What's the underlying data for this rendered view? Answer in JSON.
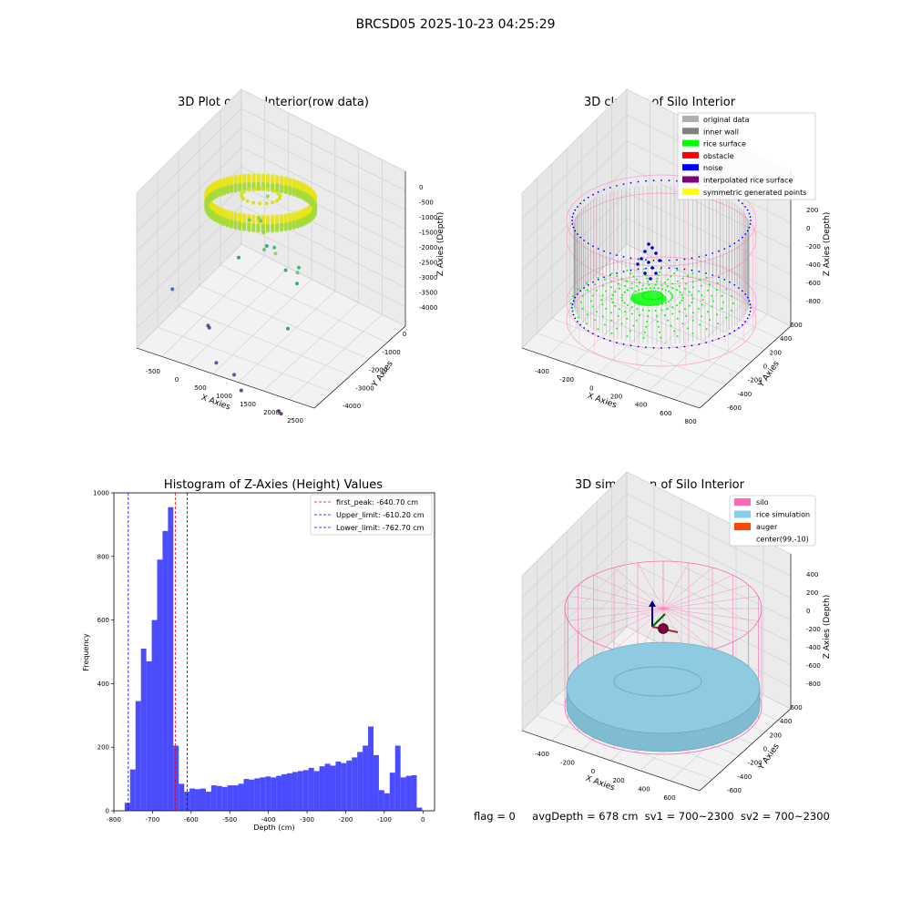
{
  "page": {
    "suptitle": "BRCSD05 2025-10-23 04:25:29",
    "status": {
      "flag": "flag = 0",
      "avg_depth": "avgDepth = 678 cm",
      "sv1": "sv1 = 700~2300",
      "sv2": "sv2 = 700~2300"
    }
  },
  "chart_data": [
    {
      "type": "scatter3d",
      "title": "3D Plot of Silo Interior(row data)",
      "xlabel": "X Axies",
      "ylabel": "Y Axies",
      "zlabel": "Z Axies (Depth)",
      "xticks": [
        "-500",
        "0",
        "500",
        "1000",
        "1500",
        "2000",
        "2500"
      ],
      "yticks": [
        "-4000",
        "-3000",
        "-2000",
        "-1000",
        "0"
      ],
      "zticks": [
        "0",
        "-500",
        "-1000",
        "-1500",
        "-2000",
        "-2500",
        "-3000",
        "-3500",
        "-4000"
      ],
      "colormap": "viridis",
      "outliers": [
        {
          "x": 150,
          "y": 500,
          "z": -600
        },
        {
          "x": 400,
          "y": -100,
          "z": -700
        },
        {
          "x": 600,
          "y": -300,
          "z": -900
        },
        {
          "x": 300,
          "y": 100,
          "z": -1000
        },
        {
          "x": 800,
          "y": -600,
          "z": -1100
        },
        {
          "x": 1100,
          "y": -800,
          "z": -900
        },
        {
          "x": 1500,
          "y": -900,
          "z": -1200
        },
        {
          "x": 0,
          "y": 300,
          "z": -1300
        },
        {
          "x": 700,
          "y": -200,
          "z": -1400
        },
        {
          "x": 1200,
          "y": -400,
          "z": -1600
        },
        {
          "x": 1300,
          "y": -600,
          "z": -1900
        },
        {
          "x": 200,
          "y": 400,
          "z": -2100
        },
        {
          "x": 1000,
          "y": -400,
          "z": -1800
        },
        {
          "x": 1800,
          "y": -1600,
          "z": -2300
        },
        {
          "x": -100,
          "y": 200,
          "z": -2500
        },
        {
          "x": -600,
          "y": -600,
          "z": -3200
        },
        {
          "x": 200,
          "y": -1000,
          "z": -3600
        },
        {
          "x": 250,
          "y": -1050,
          "z": -3600
        },
        {
          "x": 900,
          "y": -1900,
          "z": -3700
        },
        {
          "x": 1300,
          "y": -2100,
          "z": -3700
        },
        {
          "x": 1600,
          "y": -2400,
          "z": -3800
        },
        {
          "x": 2300,
          "y": -2600,
          "z": -3900
        },
        {
          "x": 2400,
          "y": -2700,
          "z": -3850
        }
      ],
      "ring": {
        "center_x": 300,
        "center_y": 100,
        "radius": 700,
        "z_top": -200,
        "z_bottom": -650
      }
    },
    {
      "type": "scatter3d",
      "title": "3D classify of Silo Interior",
      "xlabel": "X Axies",
      "ylabel": "Y Axies",
      "zlabel": "Z Axies (Depth)",
      "xticks": [
        "-400",
        "-200",
        "0",
        "200",
        "400",
        "600",
        "800"
      ],
      "yticks": [
        "-600",
        "-400",
        "-200",
        "0",
        "200",
        "400",
        "600"
      ],
      "zticks": [
        "200",
        "0",
        "-200",
        "-400",
        "-600",
        "-800"
      ],
      "legend": [
        {
          "label": "original data",
          "color": "#b0b0b0"
        },
        {
          "label": "inner wall",
          "color": "#808080"
        },
        {
          "label": "rice surface",
          "color": "#00ff00"
        },
        {
          "label": "obstacle",
          "color": "#ff0000"
        },
        {
          "label": "noise",
          "color": "#0000ff"
        },
        {
          "label": "interpolated rice surface",
          "color": "#800080"
        },
        {
          "label": "symmetric generated points",
          "color": "#ffff00"
        }
      ],
      "silo": {
        "center_x": 99,
        "center_y": -10,
        "radius": 680,
        "z_top": 250,
        "z_bottom": -900
      },
      "inner_wall": {
        "radius": 620,
        "z_top": 100,
        "z_bottom": -650
      }
    },
    {
      "type": "bar",
      "title": "Histogram of Z-Axies (Height) Values",
      "xlabel": "Depth (cm)",
      "ylabel": "Frequency",
      "xlim": [
        -800,
        30
      ],
      "ylim": [
        0,
        1000
      ],
      "xticks": [
        -800,
        -700,
        -600,
        -500,
        -400,
        -300,
        -200,
        -100,
        0
      ],
      "yticks": [
        0,
        200,
        400,
        600,
        800,
        1000
      ],
      "bin_width": 14,
      "bins_start": [
        -772,
        -758,
        -744,
        -730,
        -716,
        -702,
        -688,
        -674,
        -660,
        -646,
        -632,
        -618,
        -604,
        -590,
        -576,
        -562,
        -548,
        -534,
        -520,
        -506,
        -492,
        -478,
        -464,
        -450,
        -436,
        -422,
        -408,
        -394,
        -380,
        -366,
        -352,
        -338,
        -324,
        -310,
        -296,
        -282,
        -268,
        -254,
        -240,
        -226,
        -212,
        -198,
        -184,
        -170,
        -156,
        -142,
        -128,
        -114,
        -100,
        -86,
        -72,
        -58,
        -44,
        -30,
        -16
      ],
      "values": [
        25,
        130,
        345,
        510,
        470,
        600,
        790,
        880,
        955,
        205,
        85,
        60,
        70,
        68,
        70,
        60,
        80,
        78,
        75,
        80,
        80,
        85,
        100,
        98,
        102,
        105,
        108,
        105,
        110,
        115,
        118,
        122,
        125,
        128,
        135,
        125,
        140,
        148,
        142,
        155,
        150,
        158,
        168,
        185,
        205,
        265,
        175,
        65,
        55,
        120,
        205,
        105,
        110,
        112,
        10
      ],
      "lines": [
        {
          "label": "first_peak: -640.70 cm",
          "x": -640.7,
          "color": "#ff0000"
        },
        {
          "label": "Upper_limit: -610.20 cm",
          "x": -610.2,
          "color": "#0000ff"
        },
        {
          "label": "Lower_limit: -762.70 cm",
          "x": -762.7,
          "color": "#0000ff"
        }
      ],
      "bar_color": "#0000ff"
    },
    {
      "type": "surface3d",
      "title": "3D simulation of Silo Interior",
      "xlabel": "X Axies",
      "ylabel": "Y Axies",
      "zlabel": "Z Axies (Depth)",
      "xticks": [
        "-400",
        "-200",
        "0",
        "200",
        "400",
        "600"
      ],
      "yticks": [
        "-600",
        "-400",
        "-200",
        "0",
        "200",
        "400",
        "600"
      ],
      "zticks": [
        "400",
        "200",
        "0",
        "-200",
        "-400",
        "-600",
        "-800"
      ],
      "legend": [
        {
          "label": "silo",
          "color": "#ff69b4"
        },
        {
          "label": "rice simulation",
          "color": "#87ceeb"
        },
        {
          "label": "auger",
          "color": "#ff4500"
        },
        {
          "label": "center(99,-10)",
          "color": ""
        }
      ],
      "silo": {
        "center_x": 99,
        "center_y": -10,
        "radius": 680,
        "z_top": 250,
        "z_bottom": -900
      },
      "rice": {
        "z_surface": -640
      }
    }
  ]
}
